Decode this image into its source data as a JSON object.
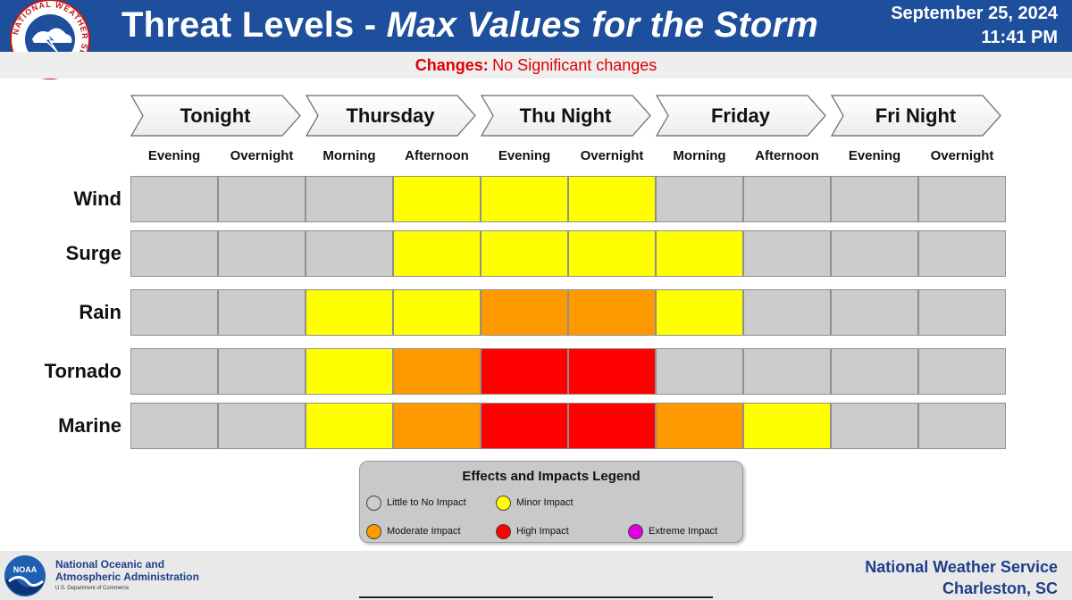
{
  "header": {
    "title_plain": "Threat Levels - ",
    "title_italic": "Max Values for the Storm",
    "date": "September 25, 2024",
    "time": "11:41 PM",
    "changes_label": "Changes:",
    "changes_text": "No Significant changes"
  },
  "days": [
    "Tonight",
    "Thursday",
    "Thu Night",
    "Friday",
    "Fri Night"
  ],
  "periods": [
    "Evening",
    "Overnight",
    "Morning",
    "Afternoon",
    "Evening",
    "Overnight",
    "Morning",
    "Afternoon",
    "Evening",
    "Overnight"
  ],
  "colors": {
    "none": "#cccccc",
    "minor": "#ffff00",
    "moderate": "#ff9900",
    "high": "#ff0000",
    "extreme": "#e000e0"
  },
  "hazards": [
    {
      "name": "Wind",
      "levels": [
        "none",
        "none",
        "none",
        "minor",
        "minor",
        "minor",
        "none",
        "none",
        "none",
        "none"
      ]
    },
    {
      "name": "Surge",
      "levels": [
        "none",
        "none",
        "none",
        "minor",
        "minor",
        "minor",
        "minor",
        "none",
        "none",
        "none"
      ]
    },
    {
      "name": "Rain",
      "levels": [
        "none",
        "none",
        "minor",
        "minor",
        "moderate",
        "moderate",
        "minor",
        "none",
        "none",
        "none"
      ]
    },
    {
      "name": "Tornado",
      "levels": [
        "none",
        "none",
        "minor",
        "moderate",
        "high",
        "high",
        "none",
        "none",
        "none",
        "none"
      ]
    },
    {
      "name": "Marine",
      "levels": [
        "none",
        "none",
        "minor",
        "moderate",
        "high",
        "high",
        "moderate",
        "minor",
        "none",
        "none"
      ]
    }
  ],
  "legend": {
    "title": "Effects and Impacts Legend",
    "items": [
      {
        "level": "none",
        "label": "Little to No Impact"
      },
      {
        "level": "minor",
        "label": "Minor Impact"
      },
      {
        "level": "moderate",
        "label": "Moderate Impact"
      },
      {
        "level": "high",
        "label": "High Impact"
      },
      {
        "level": "extreme",
        "label": "Extreme Impact"
      }
    ]
  },
  "footer": {
    "noaa_line1": "National Oceanic and",
    "noaa_line2": "Atmospheric Administration",
    "noaa_dept": "U.S. Department of Commerce",
    "noaa_logo_text": "NOAA",
    "nws_line1": "National Weather Service",
    "nws_line2": "Charleston, SC"
  },
  "nws_seal_text": "NATIONAL WEATHER SERVICE"
}
